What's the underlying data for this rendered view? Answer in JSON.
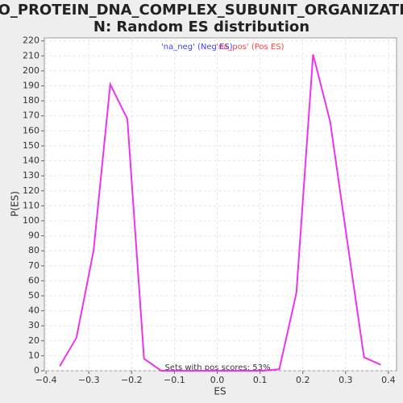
{
  "chart_data": {
    "type": "line",
    "title": [
      "GO_PROTEIN_DNA_COMPLEX_SUBUNIT_ORGANIZATIO",
      "N: Random ES distribution"
    ],
    "xlabel": "ES",
    "ylabel": "P(ES)",
    "legend": [
      {
        "name": "'na_neg' (Neg ES)",
        "color": "#4040ff"
      },
      {
        "name": "'na_pos' (Pos ES)",
        "color": "#ff4040"
      }
    ],
    "annotation": "Sets with pos scores: 53%",
    "x": [
      -0.368,
      -0.329,
      -0.289,
      -0.25,
      -0.21,
      -0.171,
      -0.131,
      -0.092,
      -0.052,
      -0.013,
      0.027,
      0.066,
      0.106,
      0.145,
      0.185,
      0.224,
      0.264,
      0.303,
      0.343,
      0.382
    ],
    "series": [
      {
        "color": "#ee33ee",
        "values": [
          3,
          22,
          80,
          191,
          168,
          8,
          0,
          0,
          0,
          0,
          0,
          0,
          0,
          1,
          52,
          211,
          166,
          88,
          9,
          4
        ]
      }
    ],
    "xlim": [
      -0.404,
      0.419
    ],
    "ylim": [
      0,
      222
    ],
    "xticks": [
      {
        "value": -0.4,
        "label": "−0.4"
      },
      {
        "value": -0.3,
        "label": "−0.3"
      },
      {
        "value": -0.2,
        "label": "−0.2"
      },
      {
        "value": -0.1,
        "label": "−0.1"
      },
      {
        "value": 0,
        "label": "0.0"
      },
      0.1,
      0.2,
      0.3,
      0.4
    ],
    "yticks": [
      0,
      10,
      20,
      30,
      40,
      50,
      60,
      70,
      80,
      90,
      100,
      110,
      120,
      130,
      140,
      150,
      160,
      170,
      180,
      190,
      200,
      210,
      220
    ],
    "grid": true
  }
}
